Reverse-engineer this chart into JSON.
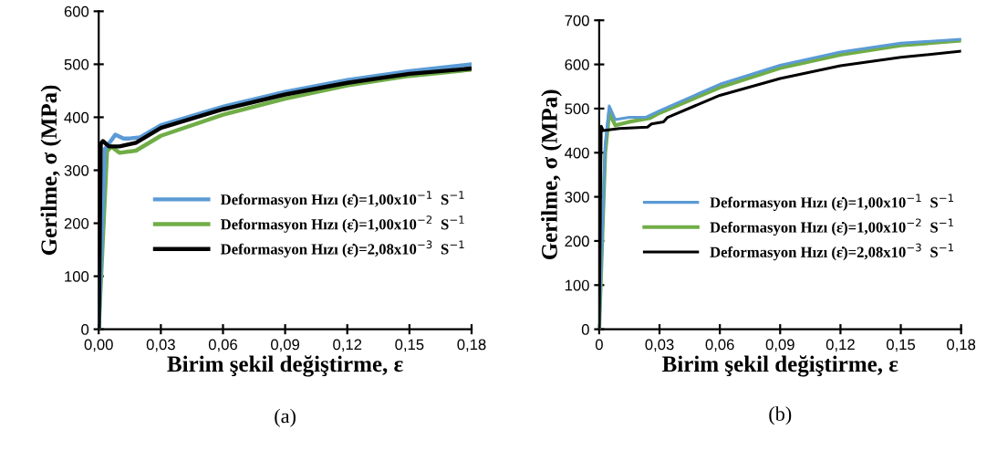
{
  "chart_data": [
    {
      "type": "line",
      "xlabel": "Birim şekil değiştirme, ε",
      "ylabel": "Gerilme, σ (MPa)",
      "annotations": [
        "(a)"
      ],
      "xlim": [
        0,
        0.18
      ],
      "xticks": [
        {
          "value": 0,
          "label": "0,00"
        },
        {
          "value": 0.03,
          "label": "0,03"
        },
        {
          "value": 0.06,
          "label": "0,06"
        },
        {
          "value": 0.09,
          "label": "0,09"
        },
        {
          "value": 0.12,
          "label": "0,12"
        },
        {
          "value": 0.15,
          "label": "0,15"
        },
        {
          "value": 0.18,
          "label": "0,18"
        }
      ],
      "ylim": [
        0,
        600
      ],
      "yticks": [
        0,
        100,
        200,
        300,
        400,
        500,
        600
      ],
      "grid": false,
      "legend": "right",
      "line_style": "solid",
      "marker": "none",
      "series": [
        {
          "name": "Deformasyon Hızı (ε̇)=1,00x10$^{−1}$  S$^{−1}$",
          "color": "#5b9bd5",
          "x": [
            0,
            0.003,
            0.008,
            0.012,
            0.015,
            0.02,
            0.03,
            0.06,
            0.09,
            0.12,
            0.15,
            0.18
          ],
          "values": [
            0,
            340,
            367,
            360,
            360,
            362,
            385,
            420,
            448,
            470,
            487,
            500
          ]
        },
        {
          "name": "Deformasyon Hızı (ε̇)=1,00x10$^{−2}$  S$^{−1}$",
          "color": "#70ad47",
          "x": [
            0,
            0.004,
            0.006,
            0.01,
            0.018,
            0.03,
            0.06,
            0.09,
            0.12,
            0.15,
            0.18
          ],
          "values": [
            0,
            335,
            345,
            333,
            337,
            365,
            405,
            435,
            460,
            478,
            490
          ]
        },
        {
          "name": "Deformasyon Hızı (ε̇)=2,08x10$^{−3}$  S$^{−1}$",
          "color": "#000000",
          "x": [
            0,
            0.001,
            0.002,
            0.005,
            0.01,
            0.018,
            0.03,
            0.06,
            0.09,
            0.12,
            0.15,
            0.18
          ],
          "values": [
            0,
            350,
            355,
            345,
            345,
            352,
            380,
            415,
            443,
            465,
            482,
            492
          ]
        }
      ]
    },
    {
      "type": "line",
      "xlabel": "Birim şekil değiştirme, ε",
      "ylabel": "Gerilme, σ (MPa)",
      "annotations": [
        "(b)"
      ],
      "xlim": [
        0,
        0.18
      ],
      "xticks": [
        {
          "value": 0,
          "label": "0"
        },
        {
          "value": 0.03,
          "label": "0,03"
        },
        {
          "value": 0.06,
          "label": "0,06"
        },
        {
          "value": 0.09,
          "label": "0,09"
        },
        {
          "value": 0.12,
          "label": "0,12"
        },
        {
          "value": 0.15,
          "label": "0,15"
        },
        {
          "value": 0.18,
          "label": "0,18"
        }
      ],
      "ylim": [
        0,
        700
      ],
      "yticks": [
        0,
        100,
        200,
        300,
        400,
        500,
        600,
        700
      ],
      "grid": false,
      "legend": "right",
      "line_style": "solid",
      "marker": "none",
      "series": [
        {
          "name": "Deformasyon Hızı (ε̇)=1,00x10$^{−1}$  S$^{−1}$",
          "color": "#5b9bd5",
          "x": [
            0,
            0.003,
            0.005,
            0.008,
            0.015,
            0.023,
            0.03,
            0.06,
            0.09,
            0.12,
            0.15,
            0.18
          ],
          "values": [
            0,
            420,
            506,
            475,
            480,
            480,
            495,
            555,
            598,
            628,
            648,
            657
          ]
        },
        {
          "name": "Deformasyon Hızı (ε̇)=1,00x10$^{−2}$  S$^{−1}$",
          "color": "#70ad47",
          "x": [
            0,
            0.003,
            0.005,
            0.008,
            0.015,
            0.025,
            0.03,
            0.06,
            0.09,
            0.12,
            0.15,
            0.18
          ],
          "values": [
            0,
            400,
            490,
            462,
            470,
            478,
            490,
            548,
            592,
            622,
            643,
            654
          ]
        },
        {
          "name": "Deformasyon Hızı (ε̇)=2,08x10$^{−3}$  S$^{−1}$",
          "color": "#000000",
          "x": [
            0,
            0.001,
            0.002,
            0.01,
            0.024,
            0.026,
            0.032,
            0.034,
            0.06,
            0.09,
            0.12,
            0.15,
            0.18
          ],
          "values": [
            0,
            460,
            450,
            455,
            458,
            465,
            470,
            480,
            530,
            568,
            597,
            616,
            630
          ]
        }
      ]
    }
  ]
}
